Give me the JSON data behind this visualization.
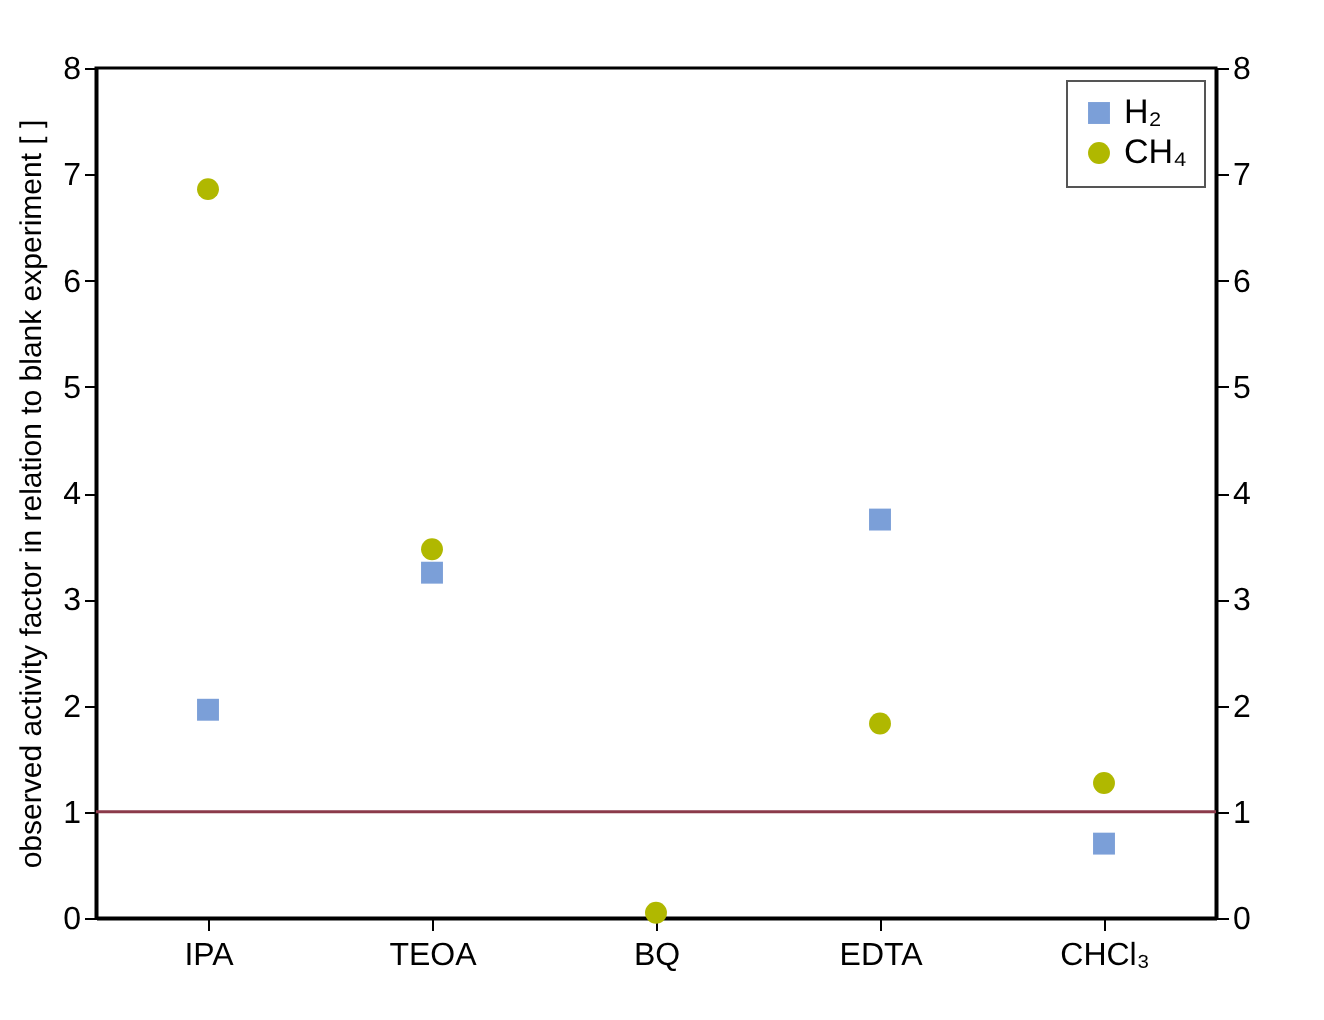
{
  "chart_data": {
    "type": "scatter",
    "ylabel": "observed activity factor in relation to blank experiment [ ]",
    "categories": [
      "IPA",
      "TEOA",
      "BQ",
      "EDTA",
      "CHCl₃"
    ],
    "series": [
      {
        "name": "H₂",
        "color": "#7b9fd8",
        "marker": "square",
        "values": [
          1.96,
          3.25,
          null,
          3.75,
          0.7
        ]
      },
      {
        "name": "CH₄",
        "color": "#b0b800",
        "marker": "circle",
        "values": [
          6.86,
          3.47,
          0.05,
          1.83,
          1.27
        ]
      }
    ],
    "ylim": [
      0,
      8
    ],
    "yticks": [
      0,
      1,
      2,
      3,
      4,
      5,
      6,
      7,
      8
    ],
    "y2lim": [
      0,
      8
    ],
    "y2ticks": [
      0,
      1,
      2,
      3,
      4,
      5,
      6,
      7,
      8
    ],
    "ref_lines": [
      {
        "axis": "y",
        "value": 1,
        "color": "#8b3a4a"
      }
    ],
    "grid": false,
    "legend": "top right"
  }
}
